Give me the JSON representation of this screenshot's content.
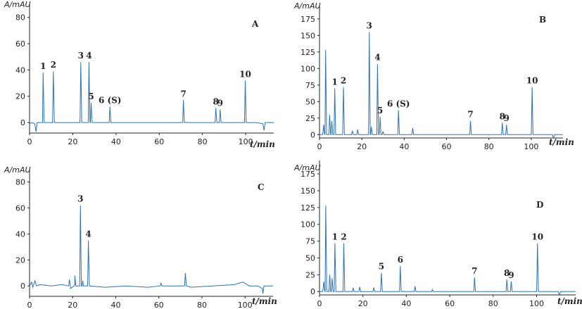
{
  "chart_data": [
    {
      "type": "line",
      "panel_label": "A",
      "ylabel": "A/mAU",
      "xlabel": "t/min",
      "xlim": [
        0,
        113
      ],
      "ylim": [
        -8,
        90
      ],
      "xticks": [
        0,
        20,
        40,
        60,
        80,
        100
      ],
      "yticks": [
        0,
        20,
        40,
        60,
        80
      ],
      "baseline": [
        [
          0,
          -1
        ],
        [
          1,
          0
        ],
        [
          2.4,
          -1
        ],
        [
          3,
          -7
        ],
        [
          3.5,
          0
        ],
        [
          6,
          0
        ],
        [
          20,
          0
        ],
        [
          60,
          0
        ],
        [
          98,
          0
        ],
        [
          105,
          0
        ],
        [
          108,
          -1
        ],
        [
          108.5,
          -6
        ],
        [
          109,
          0
        ],
        [
          113,
          0
        ]
      ],
      "peaks": [
        {
          "label": "1",
          "x": 6.3,
          "y": 38
        },
        {
          "label": "2",
          "x": 11,
          "y": 39
        },
        {
          "label": "3",
          "x": 23.7,
          "y": 46
        },
        {
          "label": "4",
          "x": 27.5,
          "y": 46
        },
        {
          "label": "5",
          "x": 28.5,
          "y": 15
        },
        {
          "label": "6 (S)",
          "x": 37.2,
          "y": 12
        },
        {
          "label": "7",
          "x": 71.2,
          "y": 17
        },
        {
          "label": "8",
          "x": 86.2,
          "y": 11
        },
        {
          "label": "9",
          "x": 88.2,
          "y": 10
        },
        {
          "label": "10",
          "x": 99.8,
          "y": 32
        }
      ],
      "minor_peaks": []
    },
    {
      "type": "line",
      "panel_label": "B",
      "ylabel": "A/mAU",
      "xlabel": "t/min",
      "xlim": [
        0,
        115
      ],
      "ylim": [
        -5,
        195
      ],
      "xticks": [
        0,
        20,
        40,
        60,
        80,
        100
      ],
      "yticks": [
        0,
        25,
        50,
        75,
        100,
        125,
        150,
        175
      ],
      "baseline": [
        [
          0,
          0
        ],
        [
          1.5,
          0
        ],
        [
          2,
          15
        ],
        [
          2.3,
          2
        ],
        [
          2.6,
          0
        ],
        [
          20,
          0
        ],
        [
          40,
          0
        ],
        [
          110,
          0
        ],
        [
          110.5,
          -5
        ],
        [
          111,
          0
        ],
        [
          115,
          0
        ]
      ],
      "peaks": [
        {
          "label": "1",
          "x": 7.2,
          "y": 70
        },
        {
          "label": "2",
          "x": 11.3,
          "y": 72
        },
        {
          "label": "3",
          "x": 23.5,
          "y": 155
        },
        {
          "label": "4",
          "x": 27.4,
          "y": 107
        },
        {
          "label": "5",
          "x": 28.6,
          "y": 27
        },
        {
          "label": "6 (S)",
          "x": 37.3,
          "y": 37
        },
        {
          "label": "7",
          "x": 71.3,
          "y": 21
        },
        {
          "label": "8",
          "x": 86.3,
          "y": 18
        },
        {
          "label": "9",
          "x": 88.3,
          "y": 15
        },
        {
          "label": "10",
          "x": 100.4,
          "y": 72
        }
      ],
      "minor_peaks": [
        [
          2.9,
          128
        ],
        [
          4.8,
          30
        ],
        [
          5.8,
          21
        ],
        [
          15.5,
          6
        ],
        [
          18,
          8
        ],
        [
          24.5,
          12
        ],
        [
          44,
          10
        ],
        [
          30,
          5
        ]
      ]
    },
    {
      "type": "line",
      "panel_label": "C",
      "ylabel": "A/mAU",
      "xlabel": "t/min",
      "xlim": [
        0,
        113
      ],
      "ylim": [
        -8,
        90
      ],
      "xticks": [
        0,
        20,
        40,
        60,
        80,
        100
      ],
      "yticks": [
        0,
        20,
        40,
        60,
        80
      ],
      "baseline": [
        [
          0,
          0
        ],
        [
          1,
          3
        ],
        [
          1.5,
          -1
        ],
        [
          2.5,
          4
        ],
        [
          3.2,
          0
        ],
        [
          5,
          1
        ],
        [
          10,
          0
        ],
        [
          15,
          1
        ],
        [
          19,
          -2
        ],
        [
          21,
          1
        ],
        [
          25,
          0
        ],
        [
          35,
          -1
        ],
        [
          45,
          0
        ],
        [
          55,
          -1
        ],
        [
          65,
          0
        ],
        [
          75,
          -1
        ],
        [
          85,
          0
        ],
        [
          95,
          1
        ],
        [
          99,
          3
        ],
        [
          102,
          0
        ],
        [
          106,
          0
        ],
        [
          108,
          -2
        ],
        [
          108.3,
          -6
        ],
        [
          108.8,
          0
        ],
        [
          113,
          0
        ]
      ],
      "peaks": [
        {
          "label": "3",
          "x": 23.6,
          "y": 62
        },
        {
          "label": "4",
          "x": 27.3,
          "y": 35
        }
      ],
      "minor_peaks": [
        [
          18.5,
          5
        ],
        [
          21,
          8
        ],
        [
          24.7,
          4
        ],
        [
          61,
          2
        ],
        [
          72.3,
          10
        ]
      ]
    },
    {
      "type": "line",
      "panel_label": "D",
      "ylabel": "A/mAU",
      "xlabel": "t/min",
      "xlim": [
        0,
        118
      ],
      "ylim": [
        -5,
        195
      ],
      "xticks": [
        0,
        20,
        40,
        60,
        80,
        100
      ],
      "yticks": [
        0,
        25,
        50,
        75,
        100,
        125,
        150,
        175
      ],
      "baseline": [
        [
          0,
          0
        ],
        [
          1.5,
          0
        ],
        [
          2,
          15
        ],
        [
          2.3,
          2
        ],
        [
          2.6,
          0
        ],
        [
          20,
          0
        ],
        [
          40,
          0
        ],
        [
          110,
          0
        ],
        [
          110.5,
          -5
        ],
        [
          111,
          0
        ],
        [
          118,
          0
        ]
      ],
      "peaks": [
        {
          "label": "1",
          "x": 7.1,
          "y": 72
        },
        {
          "label": "2",
          "x": 11.2,
          "y": 72
        },
        {
          "label": "5",
          "x": 28.5,
          "y": 28
        },
        {
          "label": "6",
          "x": 37.2,
          "y": 38
        },
        {
          "label": "7",
          "x": 71.4,
          "y": 21
        },
        {
          "label": "8",
          "x": 86.3,
          "y": 18
        },
        {
          "label": "9",
          "x": 88.3,
          "y": 15
        },
        {
          "label": "10",
          "x": 100.4,
          "y": 72
        }
      ],
      "minor_peaks": [
        [
          2.9,
          128
        ],
        [
          4.7,
          25
        ],
        [
          5.8,
          20
        ],
        [
          15.5,
          5
        ],
        [
          18.5,
          7
        ],
        [
          25,
          6
        ],
        [
          44,
          8
        ],
        [
          52,
          3
        ]
      ]
    }
  ]
}
